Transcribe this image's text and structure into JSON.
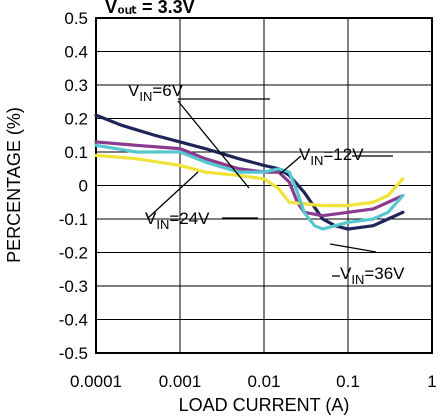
{
  "chart_data": {
    "type": "line",
    "title": "V₀ᵤₜ = 3.3V",
    "xlabel": "LOAD CURRENT (A)",
    "ylabel": "PERCENTAGE (%)",
    "x_scale": "log",
    "xlim": [
      0.0001,
      1
    ],
    "ylim": [
      -0.5,
      0.5
    ],
    "x_ticks": [
      0.0001,
      0.001,
      0.01,
      0.1,
      1
    ],
    "x_tick_labels": [
      "0.0001",
      "0.001",
      "0.01",
      "0.1",
      "1"
    ],
    "y_ticks": [
      0.5,
      0.4,
      0.3,
      0.2,
      0.1,
      0,
      -0.1,
      -0.2,
      -0.3,
      -0.4,
      -0.5
    ],
    "y_tick_labels": [
      "0.5",
      "0.4",
      "0.3",
      "0.2",
      "0.1",
      "0",
      "-0.1",
      "-0.2",
      "-0.3",
      "-0.4",
      "-0.5"
    ],
    "grid": true,
    "series": [
      {
        "name": "VIN=6V",
        "color": "#1f2459",
        "points": [
          [
            0.0001,
            0.21
          ],
          [
            0.0002,
            0.18
          ],
          [
            0.0005,
            0.15
          ],
          [
            0.001,
            0.13
          ],
          [
            0.002,
            0.11
          ],
          [
            0.005,
            0.08
          ],
          [
            0.01,
            0.06
          ],
          [
            0.015,
            0.05
          ],
          [
            0.02,
            0.03
          ],
          [
            0.03,
            -0.02
          ],
          [
            0.05,
            -0.1
          ],
          [
            0.07,
            -0.12
          ],
          [
            0.1,
            -0.13
          ],
          [
            0.2,
            -0.12
          ],
          [
            0.3,
            -0.1
          ],
          [
            0.45,
            -0.08
          ]
        ]
      },
      {
        "name": "VIN=12V",
        "color": "#8a3b8f",
        "points": [
          [
            0.0001,
            0.13
          ],
          [
            0.0003,
            0.12
          ],
          [
            0.001,
            0.11
          ],
          [
            0.002,
            0.08
          ],
          [
            0.005,
            0.05
          ],
          [
            0.01,
            0.04
          ],
          [
            0.015,
            0.04
          ],
          [
            0.02,
            0.01
          ],
          [
            0.025,
            -0.05
          ],
          [
            0.03,
            -0.08
          ],
          [
            0.05,
            -0.09
          ],
          [
            0.1,
            -0.08
          ],
          [
            0.2,
            -0.07
          ],
          [
            0.3,
            -0.05
          ],
          [
            0.45,
            -0.03
          ]
        ]
      },
      {
        "name": "VIN=24V",
        "color": "#f1e23a",
        "points": [
          [
            0.0001,
            0.09
          ],
          [
            0.0003,
            0.08
          ],
          [
            0.001,
            0.06
          ],
          [
            0.002,
            0.04
          ],
          [
            0.005,
            0.03
          ],
          [
            0.01,
            0.02
          ],
          [
            0.015,
            -0.01
          ],
          [
            0.02,
            -0.05
          ],
          [
            0.05,
            -0.06
          ],
          [
            0.1,
            -0.06
          ],
          [
            0.2,
            -0.05
          ],
          [
            0.3,
            -0.03
          ],
          [
            0.45,
            0.02
          ]
        ]
      },
      {
        "name": "VIN=36V",
        "color": "#57c7cf",
        "points": [
          [
            0.0001,
            0.12
          ],
          [
            0.0003,
            0.1
          ],
          [
            0.001,
            0.1
          ],
          [
            0.002,
            0.07
          ],
          [
            0.005,
            0.04
          ],
          [
            0.01,
            0.04
          ],
          [
            0.015,
            0.05
          ],
          [
            0.02,
            0.04
          ],
          [
            0.025,
            -0.02
          ],
          [
            0.03,
            -0.08
          ],
          [
            0.04,
            -0.12
          ],
          [
            0.05,
            -0.13
          ],
          [
            0.07,
            -0.12
          ],
          [
            0.1,
            -0.11
          ],
          [
            0.2,
            -0.1
          ],
          [
            0.3,
            -0.08
          ],
          [
            0.45,
            -0.03
          ]
        ]
      }
    ],
    "annotations": [
      {
        "series": "VIN=6V",
        "main": "V",
        "sub": "IN",
        "tail": "=6V"
      },
      {
        "series": "VIN=12V",
        "main": "V",
        "sub": "IN",
        "tail": "=12V"
      },
      {
        "series": "VIN=24V",
        "main": "V",
        "sub": "IN",
        "tail": "=24V"
      },
      {
        "series": "VIN=36V",
        "main": "V",
        "sub": "IN",
        "tail": "=36V"
      }
    ]
  }
}
